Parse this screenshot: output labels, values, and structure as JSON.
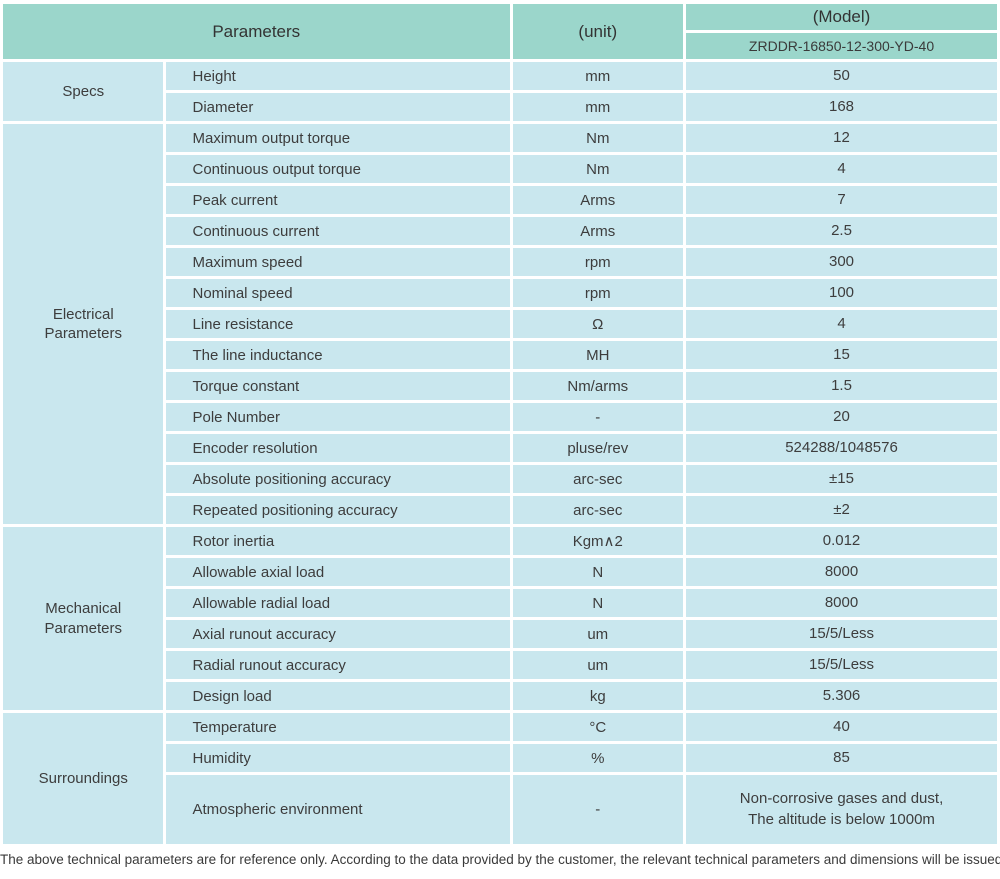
{
  "header": {
    "parameters_label": "Parameters",
    "unit_label": "(unit)",
    "model_label": "(Model)",
    "model_value": "ZRDDR-16850-12-300-YD-40"
  },
  "sections": [
    {
      "group": "Specs",
      "rows": [
        {
          "name": "Height",
          "unit": "mm",
          "value": "50"
        },
        {
          "name": "Diameter",
          "unit": "mm",
          "value": "168"
        }
      ]
    },
    {
      "group": "Electrical\nParameters",
      "rows": [
        {
          "name": "Maximum output torque",
          "unit": "Nm",
          "value": "12"
        },
        {
          "name": "Continuous output torque",
          "unit": "Nm",
          "value": "4"
        },
        {
          "name": "Peak current",
          "unit": "Arms",
          "value": "7"
        },
        {
          "name": "Continuous current",
          "unit": "Arms",
          "value": "2.5"
        },
        {
          "name": "Maximum speed",
          "unit": "rpm",
          "value": "300"
        },
        {
          "name": "Nominal speed",
          "unit": "rpm",
          "value": "100"
        },
        {
          "name": "Line resistance",
          "unit": "Ω",
          "value": "4"
        },
        {
          "name": "The line inductance",
          "unit": "MH",
          "value": "15"
        },
        {
          "name": "Torque constant",
          "unit": "Nm/arms",
          "value": "1.5"
        },
        {
          "name": "Pole Number",
          "unit": "-",
          "value": "20"
        },
        {
          "name": "Encoder resolution",
          "unit": "pluse/rev",
          "value": "524288/1048576"
        },
        {
          "name": "Absolute positioning accuracy",
          "unit": "arc-sec",
          "value": "±15"
        },
        {
          "name": "Repeated positioning accuracy",
          "unit": "arc-sec",
          "value": "±2"
        }
      ]
    },
    {
      "group": "Mechanical\nParameters",
      "rows": [
        {
          "name": "Rotor inertia",
          "unit": "Kgm∧2",
          "value": "0.012"
        },
        {
          "name": "Allowable axial load",
          "unit": "N",
          "value": "8000"
        },
        {
          "name": "Allowable radial load",
          "unit": "N",
          "value": "8000"
        },
        {
          "name": "Axial runout accuracy",
          "unit": "um",
          "value": "15/5/Less"
        },
        {
          "name": "Radial runout accuracy",
          "unit": "um",
          "value": "15/5/Less"
        },
        {
          "name": "Design load",
          "unit": "kg",
          "value": "5.306"
        }
      ]
    },
    {
      "group": "Surroundings",
      "rows": [
        {
          "name": "Temperature",
          "unit": "°C",
          "value": "40"
        },
        {
          "name": "Humidity",
          "unit": "%",
          "value": "85"
        },
        {
          "name": "Atmospheric environment",
          "unit": "-",
          "value": "Non-corrosive gases and dust,\nThe altitude is below 1000m",
          "tall": true
        }
      ]
    }
  ],
  "footer": "The above technical parameters are for reference only. According to the data provided by the customer, the relevant technical parameters and dimensions will be issued.",
  "colors": {
    "header_bg": "#9bd6cb",
    "row_bg": "#c9e7ee",
    "text": "#3d3d3d",
    "gap": "#ffffff"
  }
}
